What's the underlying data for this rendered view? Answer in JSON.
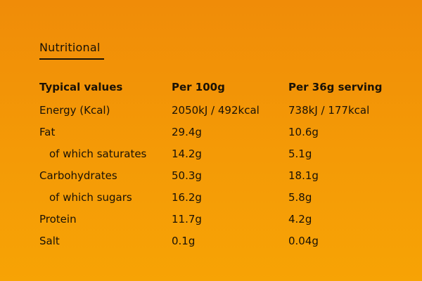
{
  "section": {
    "title": "Nutritional"
  },
  "table": {
    "headers": [
      "Typical values",
      "Per 100g",
      "Per 36g serving"
    ],
    "rows": [
      {
        "label": "Energy (Kcal)",
        "per_100g": "2050kJ / 492kcal",
        "per_serving": "738kJ / 177kcal",
        "indent": false
      },
      {
        "label": "Fat",
        "per_100g": "29.4g",
        "per_serving": "10.6g",
        "indent": false
      },
      {
        "label": "of which saturates",
        "per_100g": "14.2g",
        "per_serving": "5.1g",
        "indent": true
      },
      {
        "label": "Carbohydrates",
        "per_100g": "50.3g",
        "per_serving": "18.1g",
        "indent": false
      },
      {
        "label": "of which sugars",
        "per_100g": "16.2g",
        "per_serving": "5.8g",
        "indent": true
      },
      {
        "label": "Protein",
        "per_100g": "11.7g",
        "per_serving": "4.2g",
        "indent": false
      },
      {
        "label": "Salt",
        "per_100g": "0.1g",
        "per_serving": "0.04g",
        "indent": false
      }
    ]
  },
  "colors": {
    "background_top": "#f08c08",
    "background_bottom": "#f7a305",
    "text": "#1a1206"
  }
}
